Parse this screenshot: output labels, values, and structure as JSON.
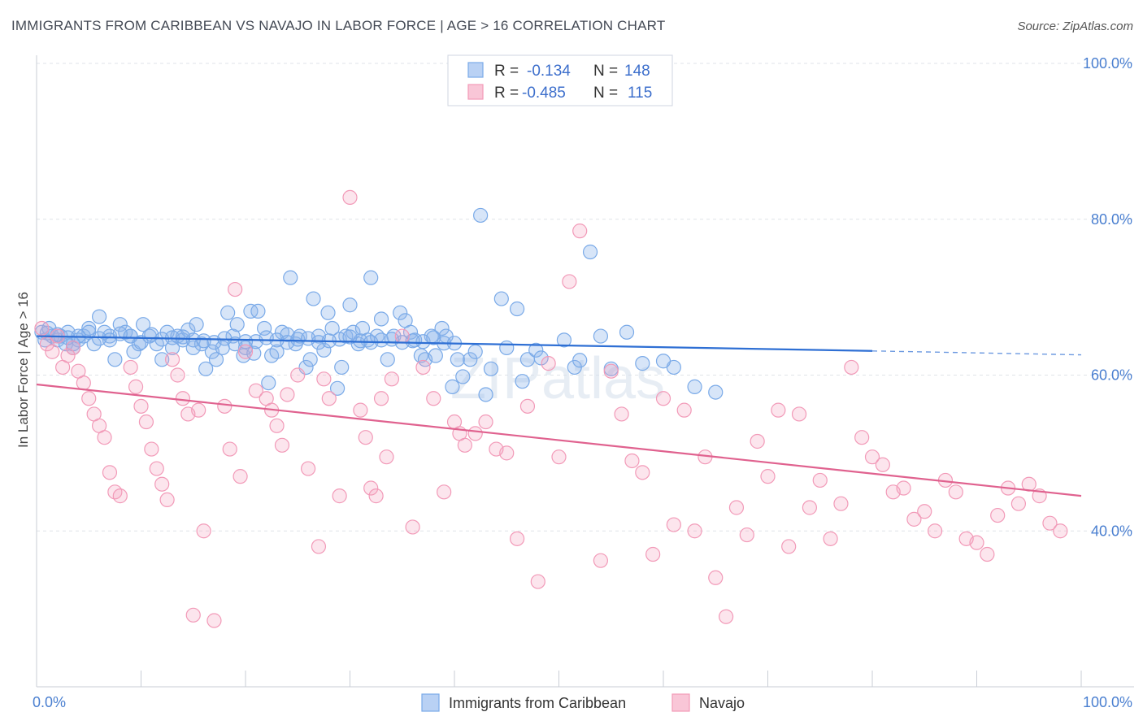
{
  "header": {
    "title": "IMMIGRANTS FROM CARIBBEAN VS NAVAJO IN LABOR FORCE | AGE > 16 CORRELATION CHART",
    "source": "Source: ZipAtlas.com"
  },
  "watermark": "ZIPatlas",
  "chart_data": {
    "type": "scatter",
    "ylabel": "In Labor Force | Age > 16",
    "xlim": [
      0,
      100
    ],
    "ylim": [
      20,
      100
    ],
    "x_tick_labels": [
      "0.0%",
      "100.0%"
    ],
    "y_ticks": [
      40,
      60,
      80,
      100
    ],
    "y_tick_labels": [
      "40.0%",
      "60.0%",
      "80.0%",
      "100.0%"
    ],
    "grid": "horizontal-dashed",
    "legend_position": "top-center",
    "legend": [
      {
        "r_label": "R =",
        "r_value": "-0.134",
        "n_label": "N =",
        "n_value": "148"
      },
      {
        "r_label": "R =",
        "r_value": "-0.485",
        "n_label": "N =",
        "n_value": "115"
      }
    ],
    "series": [
      {
        "name": "Immigrants from Caribbean",
        "color": "#7aaae8",
        "line_color": "#2e6fd4",
        "trend": {
          "x0": 0,
          "y0": 65.0,
          "x1": 80,
          "y1": 63.1,
          "dashed_to": 100,
          "dashed_y": 62.6
        },
        "points": [
          [
            0.5,
            65.5
          ],
          [
            0.8,
            64.5
          ],
          [
            1.2,
            66
          ],
          [
            1.5,
            65
          ],
          [
            2,
            64.5
          ],
          [
            2.3,
            65
          ],
          [
            2.8,
            64
          ],
          [
            3,
            65.5
          ],
          [
            3.5,
            63.5
          ],
          [
            4,
            64.5
          ],
          [
            4.5,
            65
          ],
          [
            5,
            66
          ],
          [
            5.5,
            64
          ],
          [
            6,
            67.5
          ],
          [
            6.5,
            65.5
          ],
          [
            7,
            65
          ],
          [
            7.5,
            62
          ],
          [
            8,
            66.5
          ],
          [
            8.5,
            65.5
          ],
          [
            9,
            65
          ],
          [
            9.3,
            63
          ],
          [
            9.8,
            64
          ],
          [
            10.2,
            66.5
          ],
          [
            10.8,
            65
          ],
          [
            11.5,
            64
          ],
          [
            12,
            62
          ],
          [
            12.5,
            65.5
          ],
          [
            13,
            63.5
          ],
          [
            13.5,
            65
          ],
          [
            14,
            64.5
          ],
          [
            14.5,
            65.8
          ],
          [
            15,
            63.5
          ],
          [
            15.3,
            66.5
          ],
          [
            15.8,
            64
          ],
          [
            16.2,
            60.8
          ],
          [
            16.8,
            63
          ],
          [
            17.2,
            62
          ],
          [
            17.8,
            63.5
          ],
          [
            18.3,
            68
          ],
          [
            18.8,
            65
          ],
          [
            19.2,
            66.5
          ],
          [
            19.8,
            62.5
          ],
          [
            20,
            63.5
          ],
          [
            20.5,
            68.2
          ],
          [
            20.8,
            62.8
          ],
          [
            21.2,
            68.2
          ],
          [
            21.8,
            66
          ],
          [
            22.2,
            59
          ],
          [
            22.5,
            62.5
          ],
          [
            23,
            63
          ],
          [
            23.5,
            65.5
          ],
          [
            24,
            65.2
          ],
          [
            24.3,
            72.5
          ],
          [
            24.8,
            64
          ],
          [
            25.2,
            65
          ],
          [
            25.8,
            61
          ],
          [
            26.2,
            62
          ],
          [
            26.5,
            69.8
          ],
          [
            27,
            65
          ],
          [
            27.5,
            63.2
          ],
          [
            27.9,
            68
          ],
          [
            28.3,
            66
          ],
          [
            28.8,
            58.3
          ],
          [
            29.2,
            61
          ],
          [
            29.6,
            65
          ],
          [
            30,
            69
          ],
          [
            30.3,
            65.5
          ],
          [
            30.8,
            64
          ],
          [
            31.2,
            66
          ],
          [
            31.7,
            64.5
          ],
          [
            32,
            72.5
          ],
          [
            32.6,
            65
          ],
          [
            33,
            67.2
          ],
          [
            33.6,
            62
          ],
          [
            34.2,
            65
          ],
          [
            34.8,
            68
          ],
          [
            35.3,
            67
          ],
          [
            35.8,
            65.5
          ],
          [
            36.2,
            64.5
          ],
          [
            36.8,
            62.5
          ],
          [
            37.2,
            62
          ],
          [
            37.8,
            65
          ],
          [
            38.2,
            62.5
          ],
          [
            38.8,
            66
          ],
          [
            39.2,
            65
          ],
          [
            39.8,
            58.5
          ],
          [
            40.3,
            62
          ],
          [
            40.8,
            59.8
          ],
          [
            41.5,
            62
          ],
          [
            42,
            63
          ],
          [
            42.5,
            80.5
          ],
          [
            43,
            57.5
          ],
          [
            43.5,
            60.8
          ],
          [
            44.5,
            69.8
          ],
          [
            45,
            63.5
          ],
          [
            46,
            68.5
          ],
          [
            46.5,
            59.2
          ],
          [
            47,
            62
          ],
          [
            47.8,
            63.2
          ],
          [
            48.3,
            62.2
          ],
          [
            50.5,
            64.5
          ],
          [
            51.5,
            61
          ],
          [
            53,
            75.8
          ],
          [
            54,
            65
          ],
          [
            55,
            60.8
          ],
          [
            56.5,
            65.5
          ],
          [
            58,
            61.5
          ],
          [
            61,
            61
          ],
          [
            63,
            58.5
          ],
          [
            65,
            57.8
          ],
          [
            3.5,
            64
          ],
          [
            5,
            65.5
          ],
          [
            7,
            64.5
          ],
          [
            9,
            65
          ],
          [
            11,
            65.2
          ],
          [
            13,
            64.8
          ],
          [
            15,
            64.5
          ],
          [
            17,
            64.2
          ],
          [
            19,
            64
          ],
          [
            21,
            64.3
          ],
          [
            23,
            64.5
          ],
          [
            25,
            64.6
          ],
          [
            27,
            64.2
          ],
          [
            29,
            64.6
          ],
          [
            31,
            64.4
          ],
          [
            33,
            64.5
          ],
          [
            35,
            64.2
          ],
          [
            37,
            64.3
          ],
          [
            39,
            64.1
          ],
          [
            1,
            65.4
          ],
          [
            2,
            65.2
          ],
          [
            3,
            64.8
          ],
          [
            4,
            65
          ],
          [
            6,
            64.7
          ],
          [
            8,
            65.3
          ],
          [
            10,
            64.2
          ],
          [
            12,
            64.6
          ],
          [
            14,
            64.9
          ],
          [
            16,
            64.4
          ],
          [
            18,
            64.7
          ],
          [
            20,
            64.3
          ],
          [
            22,
            64.8
          ],
          [
            24,
            64.2
          ],
          [
            26,
            64.7
          ],
          [
            28,
            64.4
          ],
          [
            30,
            64.9
          ],
          [
            32,
            64.2
          ],
          [
            34,
            64.6
          ],
          [
            36,
            64.4
          ],
          [
            38,
            64.8
          ],
          [
            40,
            64.1
          ],
          [
            60,
            61.8
          ],
          [
            52,
            61.9
          ]
        ]
      },
      {
        "name": "Navajo",
        "color": "#f29ab8",
        "line_color": "#e0628f",
        "trend": {
          "x0": 0,
          "y0": 58.8,
          "x1": 100,
          "y1": 44.5
        },
        "points": [
          [
            0.5,
            66
          ],
          [
            1,
            64
          ],
          [
            1.5,
            63
          ],
          [
            2,
            65
          ],
          [
            2.5,
            61
          ],
          [
            3,
            62.5
          ],
          [
            3.5,
            63.5
          ],
          [
            4,
            60.5
          ],
          [
            4.5,
            59
          ],
          [
            5,
            57
          ],
          [
            5.5,
            55
          ],
          [
            6,
            53.5
          ],
          [
            6.5,
            52
          ],
          [
            7,
            47.5
          ],
          [
            7.5,
            45
          ],
          [
            8,
            44.5
          ],
          [
            9,
            61
          ],
          [
            9.5,
            58.5
          ],
          [
            10,
            56
          ],
          [
            10.5,
            54
          ],
          [
            11,
            50.5
          ],
          [
            11.5,
            48
          ],
          [
            12,
            46
          ],
          [
            12.5,
            44
          ],
          [
            13,
            62
          ],
          [
            13.5,
            60
          ],
          [
            14,
            57
          ],
          [
            14.5,
            55
          ],
          [
            15,
            29.2
          ],
          [
            15.5,
            55.5
          ],
          [
            16,
            40
          ],
          [
            17,
            28.5
          ],
          [
            18,
            56
          ],
          [
            18.5,
            50.5
          ],
          [
            19,
            71
          ],
          [
            19.5,
            47
          ],
          [
            20,
            63
          ],
          [
            21,
            58
          ],
          [
            22,
            57
          ],
          [
            22.5,
            55.5
          ],
          [
            23,
            53.5
          ],
          [
            23.5,
            51
          ],
          [
            24,
            57.5
          ],
          [
            25,
            60
          ],
          [
            26,
            48
          ],
          [
            27,
            38
          ],
          [
            27.5,
            59.5
          ],
          [
            28,
            57
          ],
          [
            29,
            44.5
          ],
          [
            30,
            82.8
          ],
          [
            31,
            55.5
          ],
          [
            31.5,
            52
          ],
          [
            32,
            45.5
          ],
          [
            32.5,
            44.5
          ],
          [
            33,
            57
          ],
          [
            33.5,
            49.5
          ],
          [
            34,
            59.5
          ],
          [
            35,
            65
          ],
          [
            36,
            40.5
          ],
          [
            37,
            61
          ],
          [
            38,
            57
          ],
          [
            39,
            45
          ],
          [
            40,
            54
          ],
          [
            40.5,
            52.5
          ],
          [
            41,
            51
          ],
          [
            42,
            52.5
          ],
          [
            43,
            54
          ],
          [
            44,
            50.5
          ],
          [
            45,
            50
          ],
          [
            46,
            39
          ],
          [
            47,
            56
          ],
          [
            48,
            33.5
          ],
          [
            49,
            61.5
          ],
          [
            50,
            49.5
          ],
          [
            51,
            72
          ],
          [
            52,
            78.5
          ],
          [
            54,
            36.2
          ],
          [
            55,
            60.5
          ],
          [
            56,
            55
          ],
          [
            57,
            49
          ],
          [
            58,
            47.5
          ],
          [
            59,
            37
          ],
          [
            60,
            57
          ],
          [
            61,
            40.8
          ],
          [
            62,
            55.5
          ],
          [
            63,
            40
          ],
          [
            64,
            49.5
          ],
          [
            65,
            34
          ],
          [
            66,
            29
          ],
          [
            67,
            43
          ],
          [
            68,
            39.5
          ],
          [
            69,
            51.5
          ],
          [
            70,
            47
          ],
          [
            71,
            55.5
          ],
          [
            72,
            38
          ],
          [
            73,
            55
          ],
          [
            74,
            43
          ],
          [
            75,
            46.5
          ],
          [
            76,
            39
          ],
          [
            77,
            43.5
          ],
          [
            78,
            61
          ],
          [
            79,
            52
          ],
          [
            80,
            49.5
          ],
          [
            81,
            48.5
          ],
          [
            82,
            45
          ],
          [
            83,
            45.5
          ],
          [
            84,
            41.5
          ],
          [
            85,
            42.5
          ],
          [
            86,
            40
          ],
          [
            87,
            46.5
          ],
          [
            88,
            45
          ],
          [
            89,
            39
          ],
          [
            90,
            38.5
          ],
          [
            91,
            37
          ],
          [
            92,
            42
          ],
          [
            93,
            45.5
          ],
          [
            94,
            43.5
          ],
          [
            95,
            46
          ],
          [
            96,
            44.5
          ],
          [
            97,
            41
          ],
          [
            98,
            40
          ]
        ]
      }
    ]
  }
}
